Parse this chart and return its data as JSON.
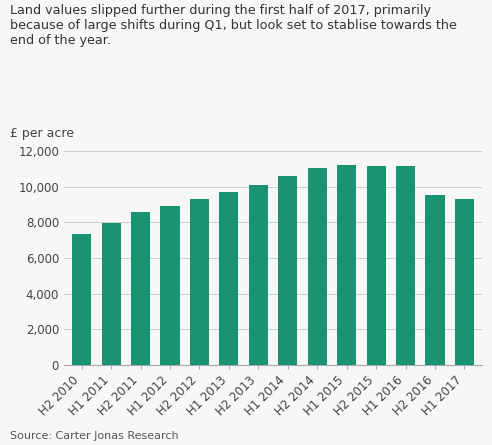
{
  "title_text": "Land values slipped further during the first half of 2017, primarily\nbecause of large shifts during Q1, but look set to stablise towards the\nend of the year.",
  "ylabel_above": "£ per acre",
  "source": "Source: Carter Jonas Research",
  "bar_color": "#1a9370",
  "background_color": "#f7f7f7",
  "categories": [
    "H2 2010",
    "H1 2011",
    "H2 2011",
    "H1 2012",
    "H2 2012",
    "H1 2013",
    "H2 2013",
    "H1 2014",
    "H2 2014",
    "H1 2015",
    "H2 2015",
    "H1 2016",
    "H2 2016",
    "H1 2017"
  ],
  "values": [
    7350,
    7950,
    8600,
    8950,
    9300,
    9700,
    10100,
    10600,
    11050,
    11250,
    11150,
    11200,
    9550,
    9300
  ],
  "ylim": [
    0,
    12000
  ],
  "yticks": [
    0,
    2000,
    4000,
    6000,
    8000,
    10000,
    12000
  ],
  "grid_color": "#cccccc",
  "title_fontsize": 9.2,
  "ylabel_fontsize": 9,
  "tick_fontsize": 8.5,
  "source_fontsize": 8
}
